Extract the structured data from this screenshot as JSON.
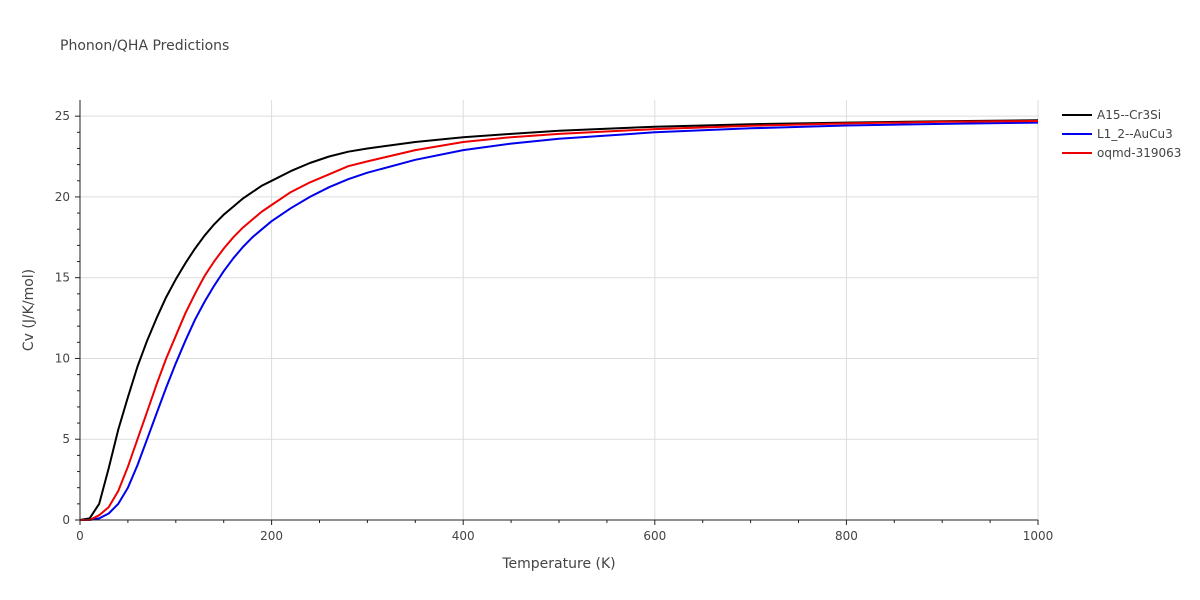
{
  "chart_data": {
    "type": "line",
    "title": "Phonon/QHA Predictions",
    "xlabel": "Temperature (K)",
    "ylabel": "Cv (J/K/mol)",
    "xlim": [
      0,
      1000
    ],
    "ylim": [
      0,
      26
    ],
    "xticks": [
      0,
      200,
      400,
      600,
      800,
      1000
    ],
    "yticks": [
      0,
      5,
      10,
      15,
      20,
      25
    ],
    "grid": true,
    "legend_position": "top-right",
    "series": [
      {
        "name": "A15--Cr3Si",
        "color": "#000000",
        "x": [
          0,
          10,
          20,
          30,
          40,
          50,
          60,
          70,
          80,
          90,
          100,
          110,
          120,
          130,
          140,
          150,
          160,
          170,
          180,
          190,
          200,
          220,
          240,
          260,
          280,
          300,
          350,
          400,
          450,
          500,
          600,
          700,
          800,
          900,
          1000
        ],
        "y": [
          0,
          0.1,
          1.0,
          3.2,
          5.6,
          7.6,
          9.5,
          11.1,
          12.5,
          13.8,
          14.9,
          15.9,
          16.8,
          17.6,
          18.3,
          18.9,
          19.4,
          19.9,
          20.3,
          20.7,
          21.0,
          21.6,
          22.1,
          22.5,
          22.8,
          23.0,
          23.4,
          23.7,
          23.9,
          24.1,
          24.35,
          24.5,
          24.6,
          24.68,
          24.75
        ]
      },
      {
        "name": "L1_2--AuCu3",
        "color": "#0000ee",
        "x": [
          0,
          10,
          20,
          30,
          40,
          50,
          60,
          70,
          80,
          90,
          100,
          110,
          120,
          130,
          140,
          150,
          160,
          170,
          180,
          190,
          200,
          220,
          240,
          260,
          280,
          300,
          350,
          400,
          450,
          500,
          600,
          700,
          800,
          900,
          1000
        ],
        "y": [
          0,
          0.0,
          0.1,
          0.4,
          1.0,
          2.0,
          3.4,
          5.0,
          6.6,
          8.2,
          9.7,
          11.1,
          12.4,
          13.5,
          14.5,
          15.4,
          16.2,
          16.9,
          17.5,
          18.0,
          18.5,
          19.3,
          20.0,
          20.6,
          21.1,
          21.5,
          22.3,
          22.9,
          23.3,
          23.6,
          24.0,
          24.25,
          24.42,
          24.52,
          24.6
        ]
      },
      {
        "name": "oqmd-319063",
        "color": "#ee0000",
        "x": [
          0,
          10,
          20,
          30,
          40,
          50,
          60,
          70,
          80,
          90,
          100,
          110,
          120,
          130,
          140,
          150,
          160,
          170,
          180,
          190,
          200,
          220,
          240,
          260,
          280,
          300,
          350,
          400,
          450,
          500,
          600,
          700,
          800,
          900,
          1000
        ],
        "y": [
          0,
          0.0,
          0.3,
          0.8,
          1.8,
          3.3,
          5.0,
          6.7,
          8.4,
          10.0,
          11.4,
          12.8,
          14.0,
          15.1,
          16.0,
          16.8,
          17.5,
          18.1,
          18.6,
          19.1,
          19.5,
          20.3,
          20.9,
          21.4,
          21.9,
          22.2,
          22.9,
          23.4,
          23.7,
          23.9,
          24.2,
          24.4,
          24.55,
          24.65,
          24.7
        ]
      }
    ]
  }
}
